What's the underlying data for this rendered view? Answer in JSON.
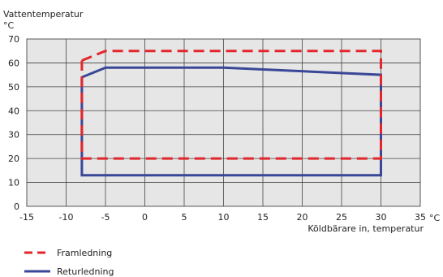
{
  "chart_data": {
    "type": "line",
    "ylabel": "Vattentemperatur",
    "yunit": "°C",
    "xlabel": "Köldbärare in, temperatur",
    "xunit": "°C",
    "xlim": [
      -15,
      35
    ],
    "ylim": [
      0,
      70
    ],
    "xticks": [
      -15,
      -10,
      -5,
      0,
      5,
      10,
      15,
      20,
      25,
      30,
      35
    ],
    "yticks": [
      0,
      10,
      20,
      30,
      40,
      50,
      60,
      70
    ],
    "grid": true,
    "legend_position": "bottom-left",
    "series": [
      {
        "name": "Framledning",
        "color": "#e3262b",
        "style": "dashed",
        "points": [
          [
            -8,
            61
          ],
          [
            -5,
            65
          ],
          [
            30,
            65
          ],
          [
            30,
            20
          ],
          [
            -8,
            20
          ],
          [
            -8,
            61
          ]
        ]
      },
      {
        "name": "Returledning",
        "color": "#3a4797",
        "style": "solid",
        "points": [
          [
            -8,
            54
          ],
          [
            -5,
            58
          ],
          [
            10,
            58
          ],
          [
            30,
            55
          ],
          [
            30,
            13
          ],
          [
            -8,
            13
          ],
          [
            -8,
            54
          ]
        ]
      }
    ]
  }
}
